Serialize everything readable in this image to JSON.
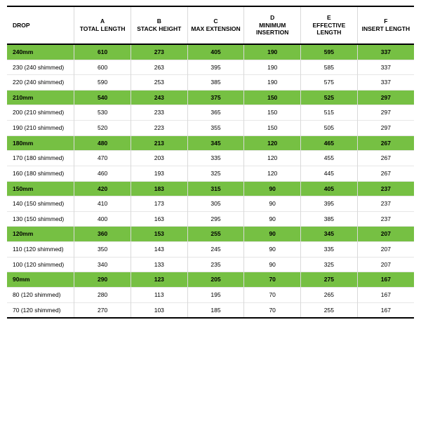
{
  "table": {
    "highlight_bg": "#76c043",
    "row_bg": "#ffffff",
    "border_color": "#000000",
    "grid_color": "#e6e6e6",
    "columns": [
      {
        "line1": "DROP",
        "line2": ""
      },
      {
        "line1": "A",
        "line2": "TOTAL LENGTH"
      },
      {
        "line1": "B",
        "line2": "STACK HEIGHT"
      },
      {
        "line1": "C",
        "line2": "MAX EXTENSION"
      },
      {
        "line1": "D",
        "line2": "MINIMUM INSERTION"
      },
      {
        "line1": "E",
        "line2": "EFFECTIVE LENGTH"
      },
      {
        "line1": "F",
        "line2": "INSERT LENGTH"
      }
    ],
    "rows": [
      {
        "hl": true,
        "cells": [
          "240mm",
          "610",
          "273",
          "405",
          "190",
          "595",
          "337"
        ]
      },
      {
        "hl": false,
        "cells": [
          "230 (240 shimmed)",
          "600",
          "263",
          "395",
          "190",
          "585",
          "337"
        ]
      },
      {
        "hl": false,
        "cells": [
          "220 (240 shimmed)",
          "590",
          "253",
          "385",
          "190",
          "575",
          "337"
        ]
      },
      {
        "hl": true,
        "cells": [
          "210mm",
          "540",
          "243",
          "375",
          "150",
          "525",
          "297"
        ]
      },
      {
        "hl": false,
        "cells": [
          "200 (210 shimmed)",
          "530",
          "233",
          "365",
          "150",
          "515",
          "297"
        ]
      },
      {
        "hl": false,
        "cells": [
          "190 (210 shimmed)",
          "520",
          "223",
          "355",
          "150",
          "505",
          "297"
        ]
      },
      {
        "hl": true,
        "cells": [
          "180mm",
          "480",
          "213",
          "345",
          "120",
          "465",
          "267"
        ]
      },
      {
        "hl": false,
        "cells": [
          "170 (180 shimmed)",
          "470",
          "203",
          "335",
          "120",
          "455",
          "267"
        ]
      },
      {
        "hl": false,
        "cells": [
          "160 (180 shimmed)",
          "460",
          "193",
          "325",
          "120",
          "445",
          "267"
        ]
      },
      {
        "hl": true,
        "cells": [
          "150mm",
          "420",
          "183",
          "315",
          "90",
          "405",
          "237"
        ]
      },
      {
        "hl": false,
        "cells": [
          "140 (150 shimmed)",
          "410",
          "173",
          "305",
          "90",
          "395",
          "237"
        ]
      },
      {
        "hl": false,
        "cells": [
          "130 (150 shimmed)",
          "400",
          "163",
          "295",
          "90",
          "385",
          "237"
        ]
      },
      {
        "hl": true,
        "cells": [
          "120mm",
          "360",
          "153",
          "255",
          "90",
          "345",
          "207"
        ]
      },
      {
        "hl": false,
        "cells": [
          "110 (120 shimmed)",
          "350",
          "143",
          "245",
          "90",
          "335",
          "207"
        ]
      },
      {
        "hl": false,
        "cells": [
          "100 (120 shimmed)",
          "340",
          "133",
          "235",
          "90",
          "325",
          "207"
        ]
      },
      {
        "hl": true,
        "cells": [
          "90mm",
          "290",
          "123",
          "205",
          "70",
          "275",
          "167"
        ]
      },
      {
        "hl": false,
        "cells": [
          "80 (120 shimmed)",
          "280",
          "113",
          "195",
          "70",
          "265",
          "167"
        ]
      },
      {
        "hl": false,
        "cells": [
          "70 (120 shimmed)",
          "270",
          "103",
          "185",
          "70",
          "255",
          "167"
        ]
      }
    ]
  }
}
